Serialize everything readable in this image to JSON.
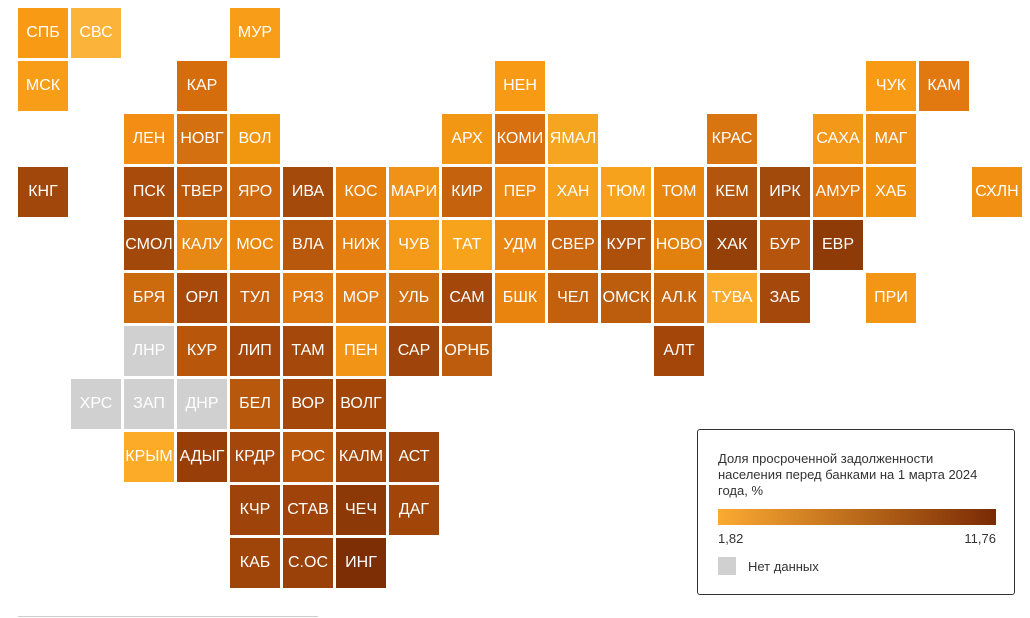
{
  "legend": {
    "title": "Доля просроченной задолженности населения перед банками на 1 марта 2024 года, %",
    "min_label": "1,82",
    "max_label": "11,76",
    "min_color": "#fbaa31",
    "max_color": "#7a2a04",
    "nodata_label": "Нет данных",
    "nodata_color": "#d0d0d0"
  },
  "regions": [
    {
      "label": "СПБ",
      "col": 0,
      "row": 0,
      "color": "#f99a14"
    },
    {
      "label": "СВС",
      "col": 1,
      "row": 0,
      "color": "#fbb33a"
    },
    {
      "label": "МУР",
      "col": 4,
      "row": 0,
      "color": "#f89d18"
    },
    {
      "label": "МСК",
      "col": 0,
      "row": 1,
      "color": "#f89d18"
    },
    {
      "label": "КАР",
      "col": 3,
      "row": 1,
      "color": "#d66d0c"
    },
    {
      "label": "НЕН",
      "col": 9,
      "row": 1,
      "color": "#f99a14"
    },
    {
      "label": "ЧУК",
      "col": 16,
      "row": 1,
      "color": "#f99a14"
    },
    {
      "label": "КАМ",
      "col": 17,
      "row": 1,
      "color": "#e27810"
    },
    {
      "label": "ЛЕН",
      "col": 2,
      "row": 2,
      "color": "#f38d14"
    },
    {
      "label": "НОВГ",
      "col": 3,
      "row": 2,
      "color": "#d4700f"
    },
    {
      "label": "ВОЛ",
      "col": 4,
      "row": 2,
      "color": "#f0960f"
    },
    {
      "label": "АРХ",
      "col": 8,
      "row": 2,
      "color": "#f29713"
    },
    {
      "label": "КОМИ",
      "col": 9,
      "row": 2,
      "color": "#d87010"
    },
    {
      "label": "ЯМАЛ",
      "col": 10,
      "row": 2,
      "color": "#f5a520"
    },
    {
      "label": "КРАС",
      "col": 13,
      "row": 2,
      "color": "#d97511"
    },
    {
      "label": "САХА",
      "col": 15,
      "row": 2,
      "color": "#f39818"
    },
    {
      "label": "МАГ",
      "col": 16,
      "row": 2,
      "color": "#ee8e13"
    },
    {
      "label": "КНГ",
      "col": 0,
      "row": 3,
      "color": "#a2470b"
    },
    {
      "label": "ПСК",
      "col": 2,
      "row": 3,
      "color": "#a94b0b"
    },
    {
      "label": "ТВЕР",
      "col": 3,
      "row": 3,
      "color": "#b8580c"
    },
    {
      "label": "ЯРО",
      "col": 4,
      "row": 3,
      "color": "#cd680e"
    },
    {
      "label": "ИВА",
      "col": 5,
      "row": 3,
      "color": "#a44a0b"
    },
    {
      "label": "КОС",
      "col": 6,
      "row": 3,
      "color": "#e5800f"
    },
    {
      "label": "МАРИ",
      "col": 7,
      "row": 3,
      "color": "#f19218"
    },
    {
      "label": "КИР",
      "col": 8,
      "row": 3,
      "color": "#c4620d"
    },
    {
      "label": "ПЕР",
      "col": 9,
      "row": 3,
      "color": "#ec8a13"
    },
    {
      "label": "ХАН",
      "col": 10,
      "row": 3,
      "color": "#f5a11d"
    },
    {
      "label": "ТЮМ",
      "col": 11,
      "row": 3,
      "color": "#f6a21c"
    },
    {
      "label": "ТОМ",
      "col": 12,
      "row": 3,
      "color": "#e9860f"
    },
    {
      "label": "КЕМ",
      "col": 13,
      "row": 3,
      "color": "#b3550d"
    },
    {
      "label": "ИРК",
      "col": 14,
      "row": 3,
      "color": "#a14a0c"
    },
    {
      "label": "АМУР",
      "col": 15,
      "row": 3,
      "color": "#e07910"
    },
    {
      "label": "ХАБ",
      "col": 16,
      "row": 3,
      "color": "#f0900f"
    },
    {
      "label": "СХЛН",
      "col": 18,
      "row": 3,
      "color": "#f19012"
    },
    {
      "label": "СМОЛ",
      "col": 2,
      "row": 4,
      "color": "#a3480b"
    },
    {
      "label": "КАЛУ",
      "col": 3,
      "row": 4,
      "color": "#e68813"
    },
    {
      "label": "МОС",
      "col": 4,
      "row": 4,
      "color": "#e8860f"
    },
    {
      "label": "ВЛА",
      "col": 5,
      "row": 4,
      "color": "#b8580c"
    },
    {
      "label": "НИЖ",
      "col": 6,
      "row": 4,
      "color": "#e47f10"
    },
    {
      "label": "ЧУВ",
      "col": 7,
      "row": 4,
      "color": "#f49a18"
    },
    {
      "label": "ТАТ",
      "col": 8,
      "row": 4,
      "color": "#f7a31c"
    },
    {
      "label": "УДМ",
      "col": 9,
      "row": 4,
      "color": "#ea8612"
    },
    {
      "label": "СВЕР",
      "col": 10,
      "row": 4,
      "color": "#c8640e"
    },
    {
      "label": "КУРГ",
      "col": 11,
      "row": 4,
      "color": "#ac500c"
    },
    {
      "label": "НОВО",
      "col": 12,
      "row": 4,
      "color": "#e3810f"
    },
    {
      "label": "ХАК",
      "col": 13,
      "row": 4,
      "color": "#954008"
    },
    {
      "label": "БУР",
      "col": 14,
      "row": 4,
      "color": "#b5540c"
    },
    {
      "label": "ЕВР",
      "col": 15,
      "row": 4,
      "color": "#8e3b07"
    },
    {
      "label": "БРЯ",
      "col": 2,
      "row": 5,
      "color": "#cc6a0e"
    },
    {
      "label": "ОРЛ",
      "col": 3,
      "row": 5,
      "color": "#a7490b"
    },
    {
      "label": "ТУЛ",
      "col": 4,
      "row": 5,
      "color": "#c4600d"
    },
    {
      "label": "РЯЗ",
      "col": 5,
      "row": 5,
      "color": "#dd7710"
    },
    {
      "label": "МОР",
      "col": 6,
      "row": 5,
      "color": "#e07a10"
    },
    {
      "label": "УЛЬ",
      "col": 7,
      "row": 5,
      "color": "#d06e0f"
    },
    {
      "label": "САМ",
      "col": 8,
      "row": 5,
      "color": "#a3470b"
    },
    {
      "label": "БШК",
      "col": 9,
      "row": 5,
      "color": "#e9840f"
    },
    {
      "label": "ЧЕЛ",
      "col": 10,
      "row": 5,
      "color": "#c2600d"
    },
    {
      "label": "ОМСК",
      "col": 11,
      "row": 5,
      "color": "#bc5d0d"
    },
    {
      "label": "АЛ.К",
      "col": 12,
      "row": 5,
      "color": "#c6640e"
    },
    {
      "label": "ТУВА",
      "col": 13,
      "row": 5,
      "color": "#fbab2b"
    },
    {
      "label": "ЗАБ",
      "col": 14,
      "row": 5,
      "color": "#a5480b"
    },
    {
      "label": "ПРИ",
      "col": 16,
      "row": 5,
      "color": "#f39616"
    },
    {
      "label": "ЛНР",
      "col": 2,
      "row": 6,
      "color": "#d0d0d0"
    },
    {
      "label": "КУР",
      "col": 3,
      "row": 6,
      "color": "#b8560c"
    },
    {
      "label": "ЛИП",
      "col": 4,
      "row": 6,
      "color": "#a5470b"
    },
    {
      "label": "ТАМ",
      "col": 5,
      "row": 6,
      "color": "#a4480b"
    },
    {
      "label": "ПЕН",
      "col": 6,
      "row": 6,
      "color": "#f29416"
    },
    {
      "label": "САР",
      "col": 7,
      "row": 6,
      "color": "#9f440a"
    },
    {
      "label": "ОРНБ",
      "col": 8,
      "row": 6,
      "color": "#bd5c0d"
    },
    {
      "label": "АЛТ",
      "col": 12,
      "row": 6,
      "color": "#a4460a"
    },
    {
      "label": "ХРС",
      "col": 1,
      "row": 7,
      "color": "#d0d0d0"
    },
    {
      "label": "ЗАП",
      "col": 2,
      "row": 7,
      "color": "#d0d0d0"
    },
    {
      "label": "ДНР",
      "col": 3,
      "row": 7,
      "color": "#d0d0d0"
    },
    {
      "label": "БЕЛ",
      "col": 4,
      "row": 7,
      "color": "#b8580c"
    },
    {
      "label": "ВОР",
      "col": 5,
      "row": 7,
      "color": "#a3470b"
    },
    {
      "label": "ВОЛГ",
      "col": 6,
      "row": 7,
      "color": "#a14509"
    },
    {
      "label": "КРЫМ",
      "col": 2,
      "row": 8,
      "color": "#fbab27"
    },
    {
      "label": "АДЫГ",
      "col": 3,
      "row": 8,
      "color": "#983e08"
    },
    {
      "label": "КРДР",
      "col": 4,
      "row": 8,
      "color": "#a5470b"
    },
    {
      "label": "РОС",
      "col": 5,
      "row": 8,
      "color": "#b8560c"
    },
    {
      "label": "КАЛМ",
      "col": 6,
      "row": 8,
      "color": "#a2460a"
    },
    {
      "label": "АСТ",
      "col": 7,
      "row": 8,
      "color": "#9e4309"
    },
    {
      "label": "КЧР",
      "col": 4,
      "row": 9,
      "color": "#9e4309"
    },
    {
      "label": "СТАВ",
      "col": 5,
      "row": 9,
      "color": "#9f430a"
    },
    {
      "label": "ЧЕЧ",
      "col": 6,
      "row": 9,
      "color": "#8c3807"
    },
    {
      "label": "ДАГ",
      "col": 7,
      "row": 9,
      "color": "#a14509"
    },
    {
      "label": "КАБ",
      "col": 4,
      "row": 10,
      "color": "#a0450a"
    },
    {
      "label": "С.ОС",
      "col": 5,
      "row": 10,
      "color": "#9a4109"
    },
    {
      "label": "ИНГ",
      "col": 6,
      "row": 10,
      "color": "#7d2e05"
    }
  ]
}
